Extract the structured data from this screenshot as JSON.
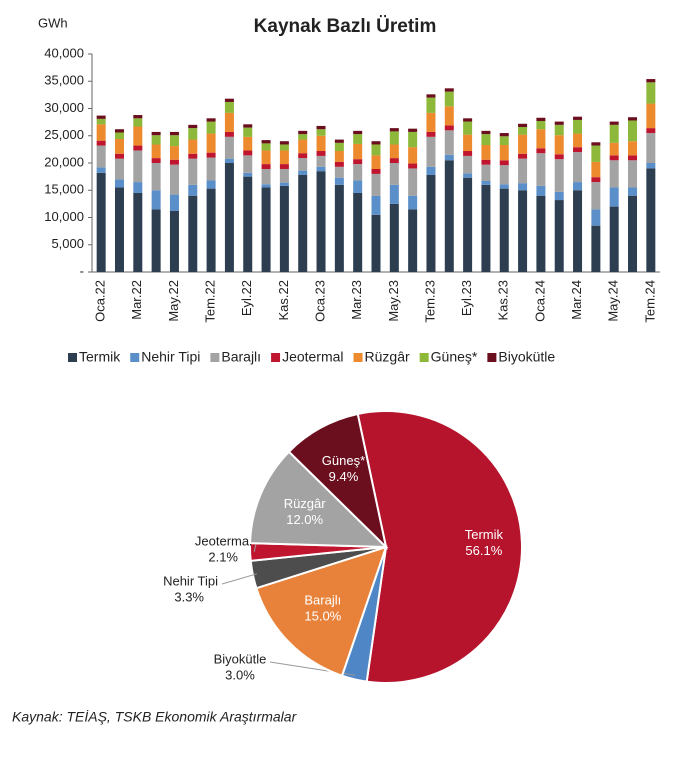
{
  "chart_data": [
    {
      "type": "bar",
      "stacked": true,
      "title": "Kaynak Bazlı Üretim",
      "y_unit": "GWh",
      "categories": [
        "Oca.22",
        null,
        "Mar.22",
        null,
        "May.22",
        null,
        "Tem.22",
        null,
        "Eyl.22",
        null,
        "Kas.22",
        null,
        "Oca.23",
        null,
        "Mar.23",
        null,
        "May.23",
        null,
        "Tem.23",
        null,
        "Eyl.23",
        null,
        "Kas.23",
        null,
        "Oca.24",
        null,
        "Mar.24",
        null,
        "May.24",
        null,
        "Tem.24"
      ],
      "series": [
        {
          "name": "Termik",
          "color": "#2c3e50",
          "values": [
            18200,
            15500,
            14500,
            11500,
            11200,
            14000,
            15300,
            20000,
            17500,
            15500,
            15800,
            17800,
            18500,
            16000,
            14500,
            10500,
            12500,
            11500,
            17800,
            20500,
            17300,
            16000,
            15300,
            15000,
            14000,
            13200,
            15000,
            8500,
            12000,
            14000,
            19000
          ]
        },
        {
          "name": "Nehir Tipi",
          "color": "#5b8fc9",
          "values": [
            1000,
            1500,
            2000,
            3500,
            3000,
            2000,
            1500,
            800,
            700,
            600,
            600,
            800,
            800,
            1300,
            2300,
            3500,
            3500,
            2500,
            1500,
            1000,
            800,
            700,
            800,
            1300,
            1800,
            1500,
            1500,
            3000,
            3500,
            1500,
            1000
          ]
        },
        {
          "name": "Barajlı",
          "color": "#a3a3a3",
          "values": [
            4000,
            3800,
            5800,
            5000,
            5500,
            4800,
            4200,
            4000,
            3200,
            2800,
            2500,
            2300,
            2000,
            2000,
            3000,
            4000,
            4000,
            5000,
            5500,
            4500,
            3200,
            3000,
            3500,
            4500,
            6000,
            6000,
            5500,
            5000,
            5000,
            5000,
            5500
          ]
        },
        {
          "name": "Jeotermal",
          "color": "#c0152f",
          "values": [
            900,
            900,
            900,
            900,
            900,
            900,
            900,
            900,
            900,
            900,
            900,
            900,
            900,
            900,
            900,
            900,
            900,
            900,
            900,
            900,
            900,
            900,
            900,
            900,
            900,
            900,
            900,
            900,
            900,
            900,
            900
          ]
        },
        {
          "name": "Rüzgâr",
          "color": "#ee8a2e",
          "values": [
            3000,
            2700,
            3500,
            2500,
            2500,
            2600,
            3500,
            3500,
            2500,
            2500,
            2500,
            2500,
            2800,
            2000,
            2800,
            2500,
            2500,
            3000,
            3500,
            3500,
            3000,
            2700,
            2800,
            3500,
            3500,
            3500,
            2500,
            2800,
            2300,
            2600,
            4500
          ]
        },
        {
          "name": "Güneş*",
          "color": "#8db83a",
          "values": [
            1000,
            1200,
            1500,
            1700,
            2000,
            2100,
            2200,
            2000,
            1700,
            1300,
            1100,
            1000,
            1200,
            1500,
            1800,
            2000,
            2400,
            2800,
            2800,
            2700,
            2400,
            2000,
            1600,
            1400,
            1500,
            1900,
            2500,
            3000,
            3300,
            3800,
            3900
          ]
        },
        {
          "name": "Biyokütle",
          "color": "#6b0f1f",
          "values": [
            600,
            600,
            600,
            600,
            600,
            600,
            600,
            600,
            600,
            600,
            600,
            600,
            600,
            600,
            600,
            600,
            600,
            600,
            600,
            600,
            600,
            600,
            600,
            600,
            600,
            600,
            600,
            600,
            600,
            600,
            600
          ]
        }
      ],
      "ylim": [
        0,
        40000
      ],
      "yticks": [
        {
          "value": 0,
          "label": "-"
        },
        {
          "value": 5000,
          "label": "5,000"
        },
        {
          "value": 10000,
          "label": "10,000"
        },
        {
          "value": 15000,
          "label": "15,000"
        },
        {
          "value": 20000,
          "label": "20,000"
        },
        {
          "value": 25000,
          "label": "25,000"
        },
        {
          "value": 30000,
          "label": "30,000"
        },
        {
          "value": 35000,
          "label": "35,000"
        },
        {
          "value": 40000,
          "label": "40,000"
        }
      ],
      "legend": "bottom"
    },
    {
      "type": "pie",
      "labels": [
        "Termik",
        "Biyokütle",
        "Barajlı",
        "Nehir Tipi",
        "Jeotermal",
        "Rüzgâr",
        "Güneş*"
      ],
      "values": [
        56.1,
        3.0,
        15.0,
        3.3,
        2.1,
        12.0,
        9.4
      ],
      "value_labels": [
        "56.1%",
        "3.0%",
        "15.0%",
        "3.3%",
        "2.1%",
        "12.0%",
        "9.4%"
      ],
      "colors": [
        "#b5142c",
        "#4f86c6",
        "#e8823a",
        "#4d4d4d",
        "#c0152f",
        "#a3a3a3",
        "#6b0f1f"
      ]
    }
  ],
  "source": "Kaynak: TEİAŞ, TSKB Ekonomik Araştırmalar"
}
